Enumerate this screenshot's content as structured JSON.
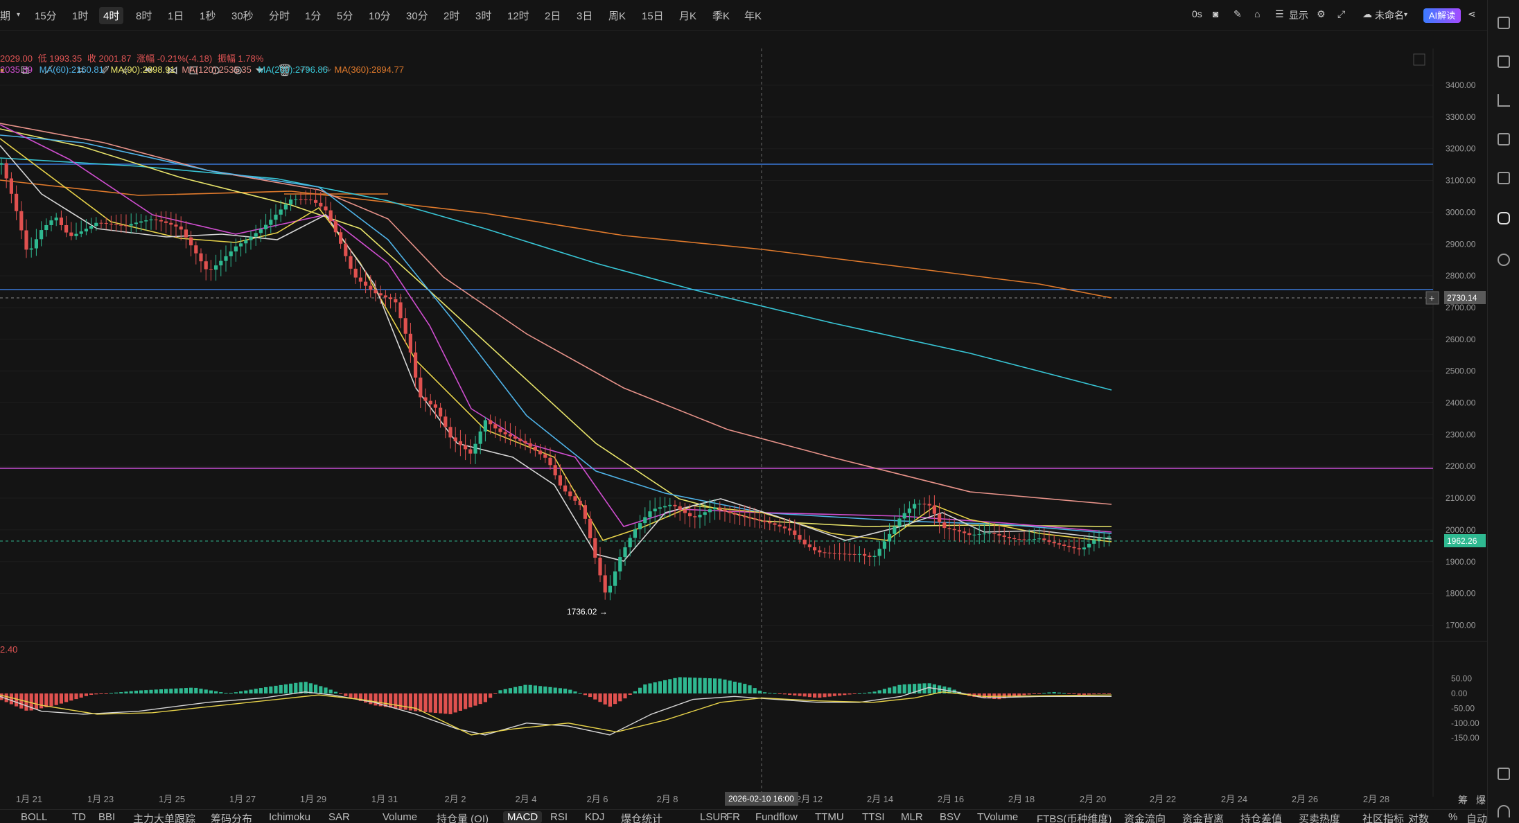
{
  "timeframes": [
    "期",
    "15分",
    "1时",
    "4时",
    "8时",
    "1日",
    "1秒",
    "30秒",
    "分时",
    "1分",
    "5分",
    "10分",
    "30分",
    "2时",
    "3时",
    "12时",
    "2日",
    "3日",
    "周K",
    "15日",
    "月K",
    "季K",
    "年K"
  ],
  "active_timeframe": "4时",
  "right_controls": {
    "countdown": "0s",
    "display": "显示",
    "account": "未命名",
    "ai_label": "AI解读"
  },
  "legend_line1": [
    {
      "text": "2029.00",
      "color": "#e05454"
    },
    {
      "text": "低 1993.35",
      "color": "#e05454"
    },
    {
      "text": "收 2001.87",
      "color": "#e05454"
    },
    {
      "text": "涨幅 -0.21%(-4.18)",
      "color": "#e05454"
    },
    {
      "text": "振幅 1.78%",
      "color": "#e05454"
    }
  ],
  "legend_line2": [
    {
      "text": "2035.39",
      "color": "#d04ed0"
    },
    {
      "text": "MA(60):2160.81",
      "color": "#4fb3e8"
    },
    {
      "text": "MA(90):2398.91",
      "color": "#e8e46a"
    },
    {
      "text": "MA(120):2535.35",
      "color": "#e8938a"
    },
    {
      "text": "MA(200):2796.86",
      "color": "#38c6d6"
    },
    {
      "text": "MA(360):2894.77",
      "color": "#e07a2c"
    }
  ],
  "macd_value": "2.40",
  "price_axis": [
    "3400.00",
    "3300.00",
    "3200.00",
    "3100.00",
    "3000.00",
    "2900.00",
    "2800.00",
    "2700.00",
    "2600.00",
    "2500.00",
    "2400.00",
    "2300.00",
    "2200.00",
    "2100.00",
    "2000.00",
    "1900.00",
    "1800.00",
    "1700.00"
  ],
  "macd_axis": [
    "50.00",
    "0.00",
    "-50.00",
    "-100.00",
    "-150.00"
  ],
  "crosshair_price": "2730.14",
  "last_price": "1962.26",
  "low_label": "1736.02",
  "crosshair_time": "2026-02-10 16:00",
  "date_labels": [
    "1月 21",
    "1月 23",
    "1月 25",
    "1月 27",
    "1月 29",
    "1月 31",
    "2月 2",
    "2月 4",
    "2月 6",
    "2月 8",
    "2月 12",
    "2月 14",
    "2月 16",
    "2月 18",
    "2月 20",
    "2月 22",
    "2月 24",
    "2月 26",
    "2月 28"
  ],
  "bottom_right": [
    "筹",
    "爆"
  ],
  "bottom_tabs": [
    "BOLL",
    "TD",
    "BBI",
    "主力大单跟踪",
    "筹码分布",
    "Ichimoku",
    "SAR",
    "Volume",
    "持仓量 (OI)",
    "MACD",
    "RSI",
    "KDJ",
    "爆仓统计",
    "LSUR",
    "FR",
    "Fundflow",
    "TTMU",
    "TTSI",
    "MLR",
    "BSV",
    "TVolume",
    "FTBS(币种维度)",
    "资金流向",
    "资金背离",
    "持仓差值",
    "买卖热度",
    "社区指标",
    "对数",
    "%",
    "自动"
  ],
  "active_bottom_tab": "MACD",
  "colors": {
    "up": "#2fb991",
    "down": "#e0514f",
    "bg": "#141414",
    "grid": "#242424"
  }
}
